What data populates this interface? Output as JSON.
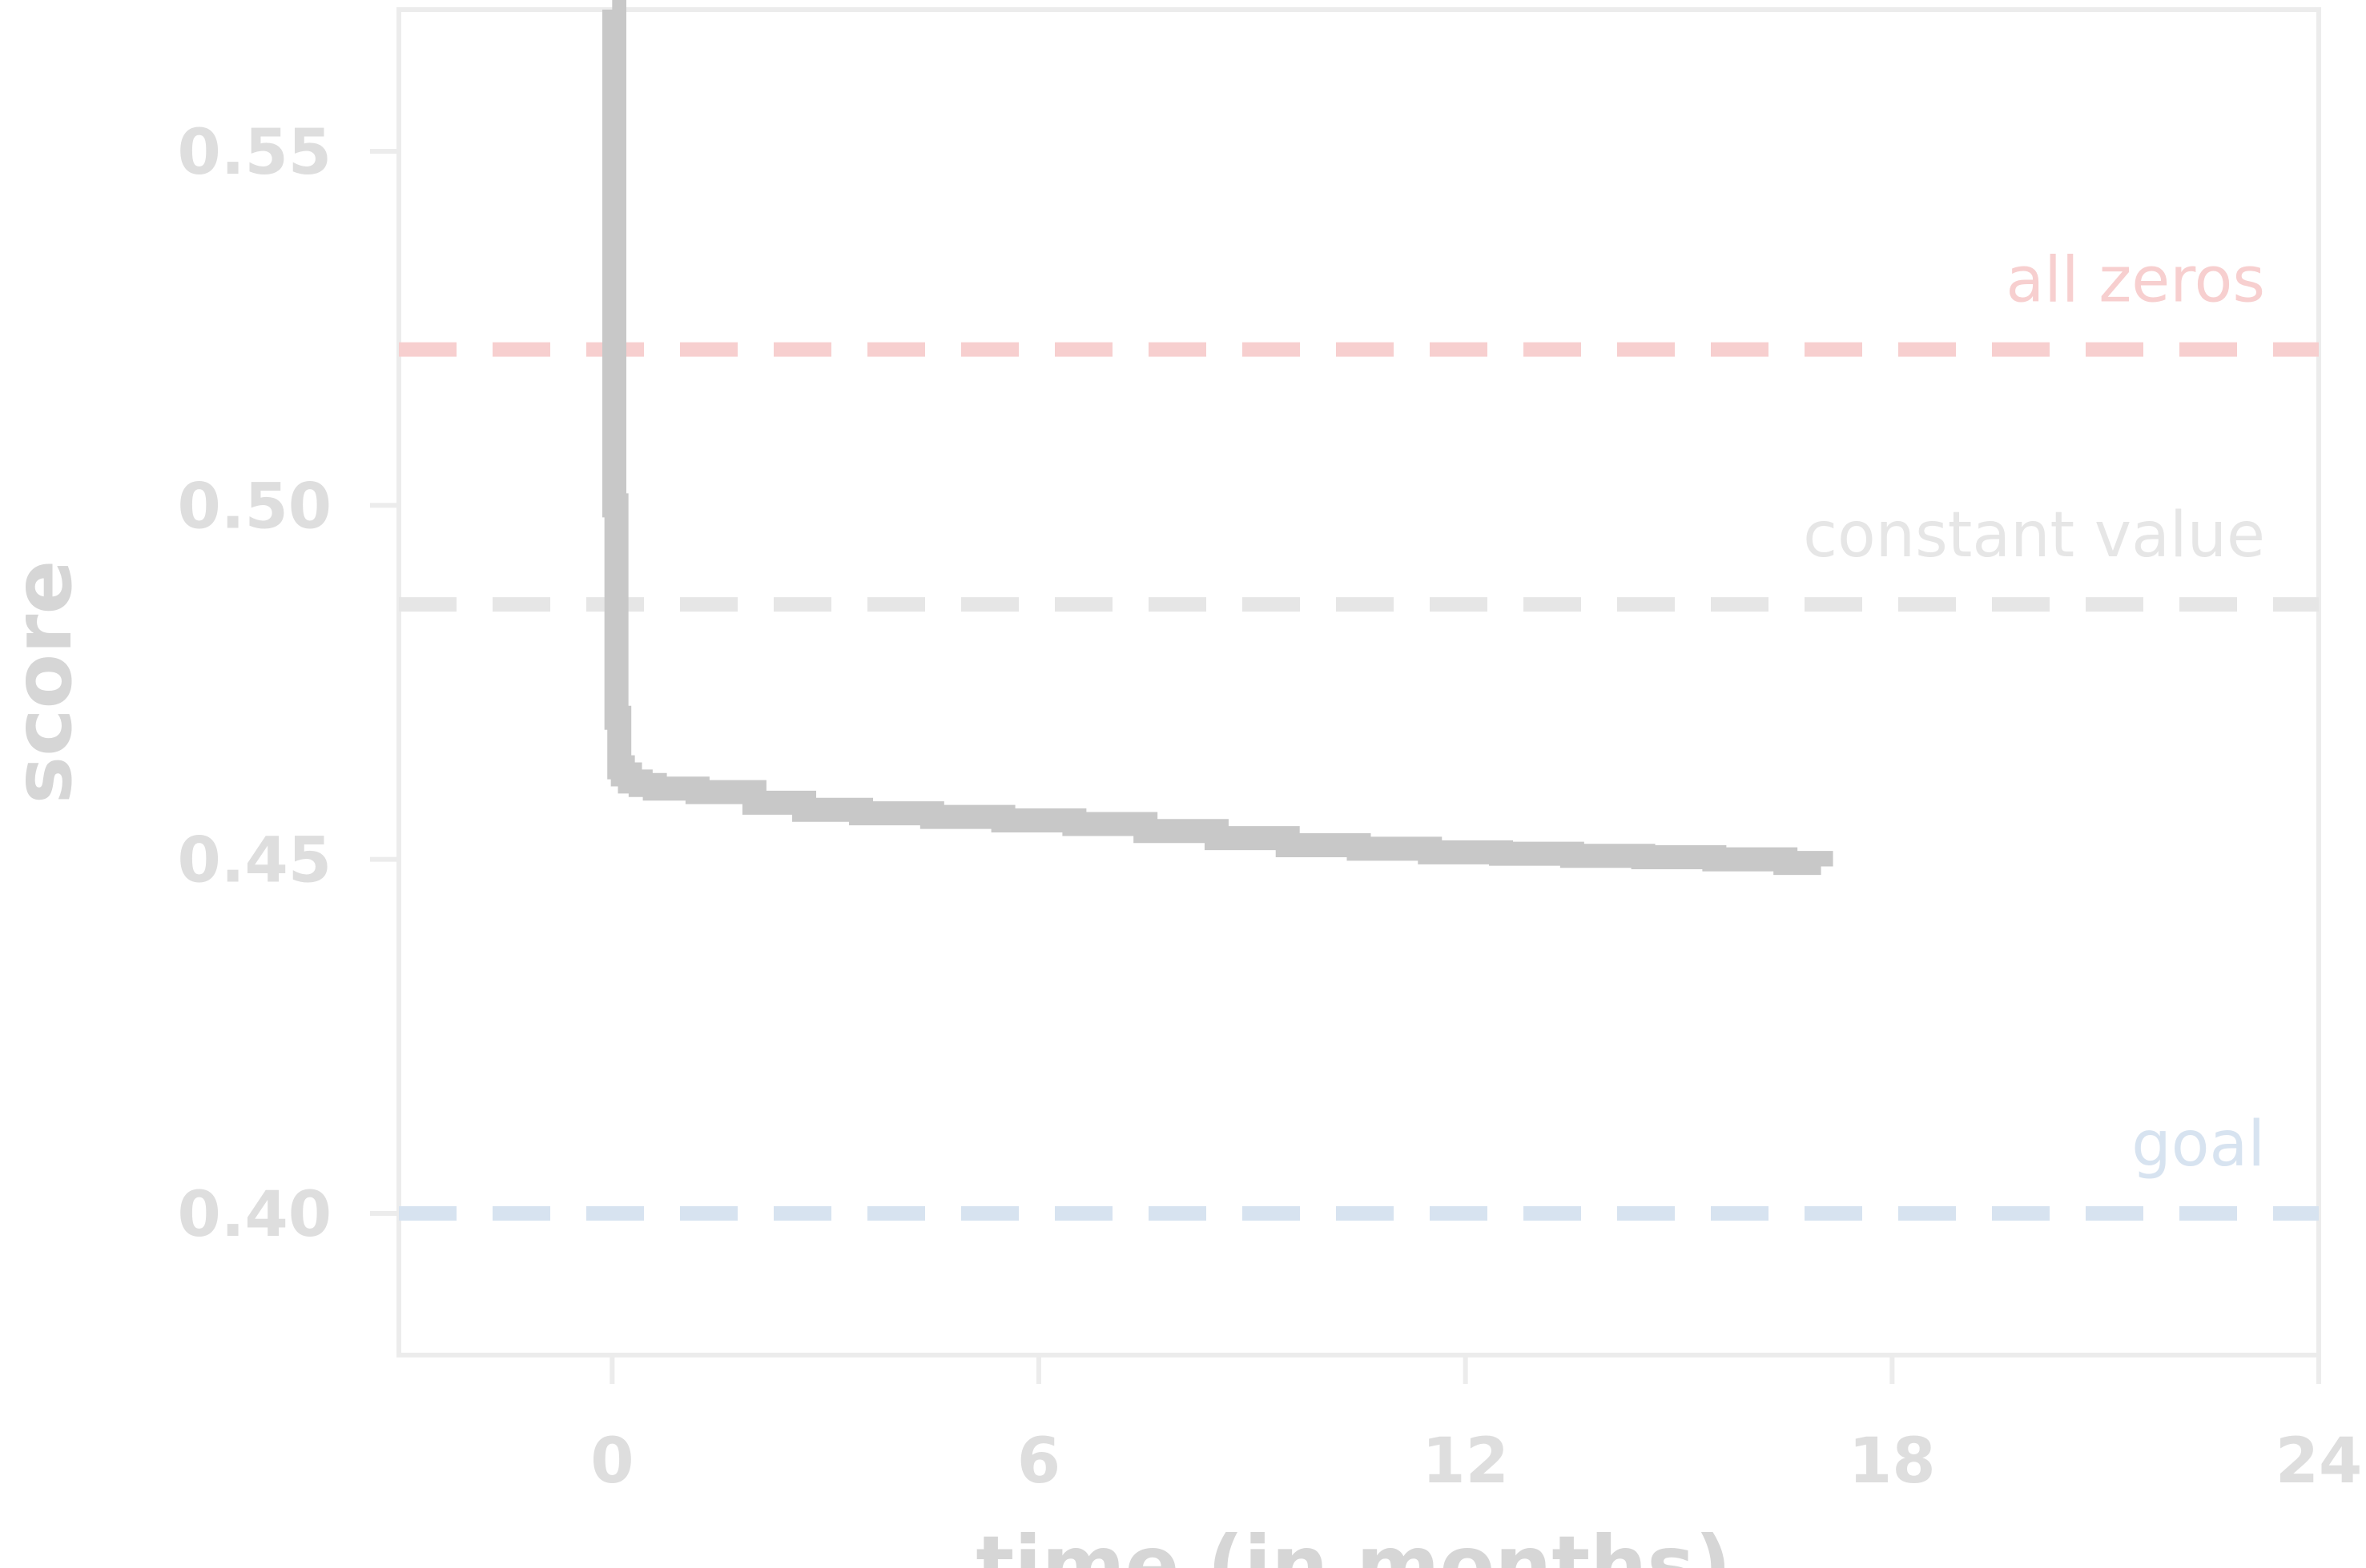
{
  "chart_data": {
    "type": "line",
    "title": "",
    "xlabel": "time (in months)",
    "ylabel": "score",
    "xlim": [
      -3,
      24
    ],
    "ylim": [
      0.38,
      0.57
    ],
    "x_ticks": [
      0,
      6,
      12,
      18,
      24
    ],
    "x_tick_labels": [
      "0",
      "6",
      "12",
      "18",
      "24"
    ],
    "y_ticks": [
      0.4,
      0.45,
      0.5,
      0.55
    ],
    "y_tick_labels": [
      "0.40",
      "0.45",
      "0.50",
      "0.55"
    ],
    "grid": false,
    "series": [
      {
        "color": "#c8c8c8",
        "x": [
          0,
          0.03,
          0.06,
          0.1,
          0.15,
          0.25,
          0.4,
          0.6,
          1.2,
          2.0,
          2.7,
          3.5,
          4.5,
          5.5,
          6.5,
          7.5,
          8.5,
          9.5,
          10.5,
          11.5,
          12.5,
          13.5,
          14.5,
          15.5,
          16.5,
          17.0
        ],
        "y": [
          0.57,
          0.5,
          0.47,
          0.463,
          0.462,
          0.461,
          0.4605,
          0.46,
          0.4595,
          0.458,
          0.457,
          0.4565,
          0.456,
          0.4555,
          0.455,
          0.454,
          0.453,
          0.452,
          0.4515,
          0.451,
          0.4508,
          0.4505,
          0.4503,
          0.45,
          0.4495,
          0.449
        ]
      }
    ],
    "reference_lines": [
      {
        "label": "all zeros",
        "y": 0.522,
        "color": "#f7cfcf"
      },
      {
        "label": "constant value",
        "y": 0.486,
        "color": "#e6e6e6"
      },
      {
        "label": "goal",
        "y": 0.4,
        "color": "#d7e3f0"
      }
    ],
    "colors": {
      "axis": "#ececec",
      "tick_text": "#dedede",
      "title_text": "#d6d6d6"
    }
  }
}
